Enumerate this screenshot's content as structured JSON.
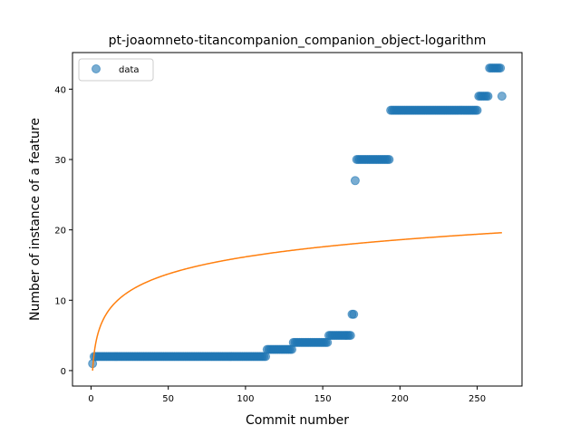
{
  "chart_data": {
    "type": "scatter",
    "title": "pt-joaomneto-titancompanion_companion_object-logarithm",
    "xlabel": "Commit number",
    "ylabel": "Number of instance of a feature",
    "xlim": [
      -12,
      279
    ],
    "ylim": [
      -2.2,
      45.2
    ],
    "xticks": [
      0,
      50,
      100,
      150,
      200,
      250
    ],
    "yticks": [
      0,
      10,
      20,
      30,
      40
    ],
    "grid": false,
    "legend": {
      "placement": "top-left",
      "entries": [
        "data"
      ]
    },
    "series": [
      {
        "name": "data",
        "kind": "scatter",
        "color": "#1f77b4",
        "alpha": 0.6,
        "segments": [
          {
            "x_from": 1,
            "x_to": 1,
            "y": 1
          },
          {
            "x_from": 2,
            "x_to": 113,
            "y": 2
          },
          {
            "x_from": 114,
            "x_to": 130,
            "y": 3
          },
          {
            "x_from": 131,
            "x_to": 153,
            "y": 4
          },
          {
            "x_from": 154,
            "x_to": 168,
            "y": 5
          },
          {
            "x_from": 169,
            "x_to": 170,
            "y": 8
          },
          {
            "x_from": 171,
            "x_to": 171,
            "y": 27
          },
          {
            "x_from": 172,
            "x_to": 193,
            "y": 30
          },
          {
            "x_from": 194,
            "x_to": 250,
            "y": 37
          },
          {
            "x_from": 251,
            "x_to": 257,
            "y": 39
          },
          {
            "x_from": 258,
            "x_to": 265,
            "y": 43
          },
          {
            "x_from": 266,
            "x_to": 266,
            "y": 39
          }
        ]
      },
      {
        "kind": "line",
        "color": "#ff7f0e",
        "fit": {
          "form": "a*ln(x)+b",
          "a": 3.51,
          "b": 0.0
        },
        "x_range": [
          1,
          266
        ]
      }
    ]
  }
}
